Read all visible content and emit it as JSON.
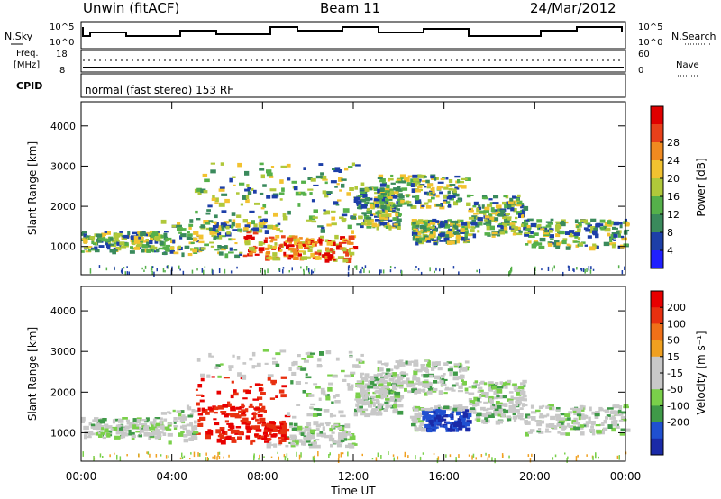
{
  "header": {
    "title": "Unwin (fitACF)",
    "beam": "Beam 11",
    "date": "24/Mar/2012"
  },
  "status_panel": {
    "nsky_label": "N.Sky",
    "nsearch_label": "N.Search",
    "freq_label_1": "Freq.",
    "freq_label_2": "[MHz]",
    "nave_label": "Nave",
    "cpid_label": "CPID",
    "cpid_text": "normal (fast stereo) 153 RF",
    "noise_left_ticks": [
      "10^5",
      "10^0"
    ],
    "noise_right_ticks": [
      "10^5",
      "10^0"
    ],
    "freq_ticks": [
      "18",
      "8"
    ],
    "nave_ticks": [
      "60",
      "0"
    ]
  },
  "colors": {
    "power_scale": [
      "#2020ff",
      "#1d3fa8",
      "#3a8a5c",
      "#55b04a",
      "#b0c83a",
      "#f2c230",
      "#f08a20",
      "#e8401a",
      "#e00000"
    ],
    "velocity_scale": [
      "#1a2aa8",
      "#2050d0",
      "#3f9a48",
      "#7ad04a",
      "#c8c8c8",
      "#c8c8c8",
      "#f0a020",
      "#f07018",
      "#e83010",
      "#e80000"
    ]
  },
  "chart_data": [
    {
      "type": "heatmap",
      "name": "power",
      "ylabel": "Slant Range [km]",
      "xlabel": "Time UT",
      "x_ticks": [
        "00:00",
        "04:00",
        "08:00",
        "12:00",
        "16:00",
        "20:00",
        "00:00"
      ],
      "y_ticks": [
        1000,
        2000,
        3000,
        4000
      ],
      "ylim": [
        300,
        4600
      ],
      "colorbar_label": "Power [dB]",
      "colorbar_ticks": [
        "4",
        "8",
        "12",
        "16",
        "20",
        "24",
        "28"
      ]
    },
    {
      "type": "heatmap",
      "name": "velocity",
      "ylabel": "Slant Range [km]",
      "xlabel": "Time UT",
      "x_ticks": [
        "00:00",
        "04:00",
        "08:00",
        "12:00",
        "16:00",
        "20:00",
        "00:00"
      ],
      "y_ticks": [
        1000,
        2000,
        3000,
        4000
      ],
      "ylim": [
        300,
        4600
      ],
      "colorbar_label": "Velocity [m s⁻¹]",
      "colorbar_ticks": [
        "200",
        "100",
        "50",
        "15",
        "-15",
        "-50",
        "-100",
        "-200"
      ]
    }
  ]
}
